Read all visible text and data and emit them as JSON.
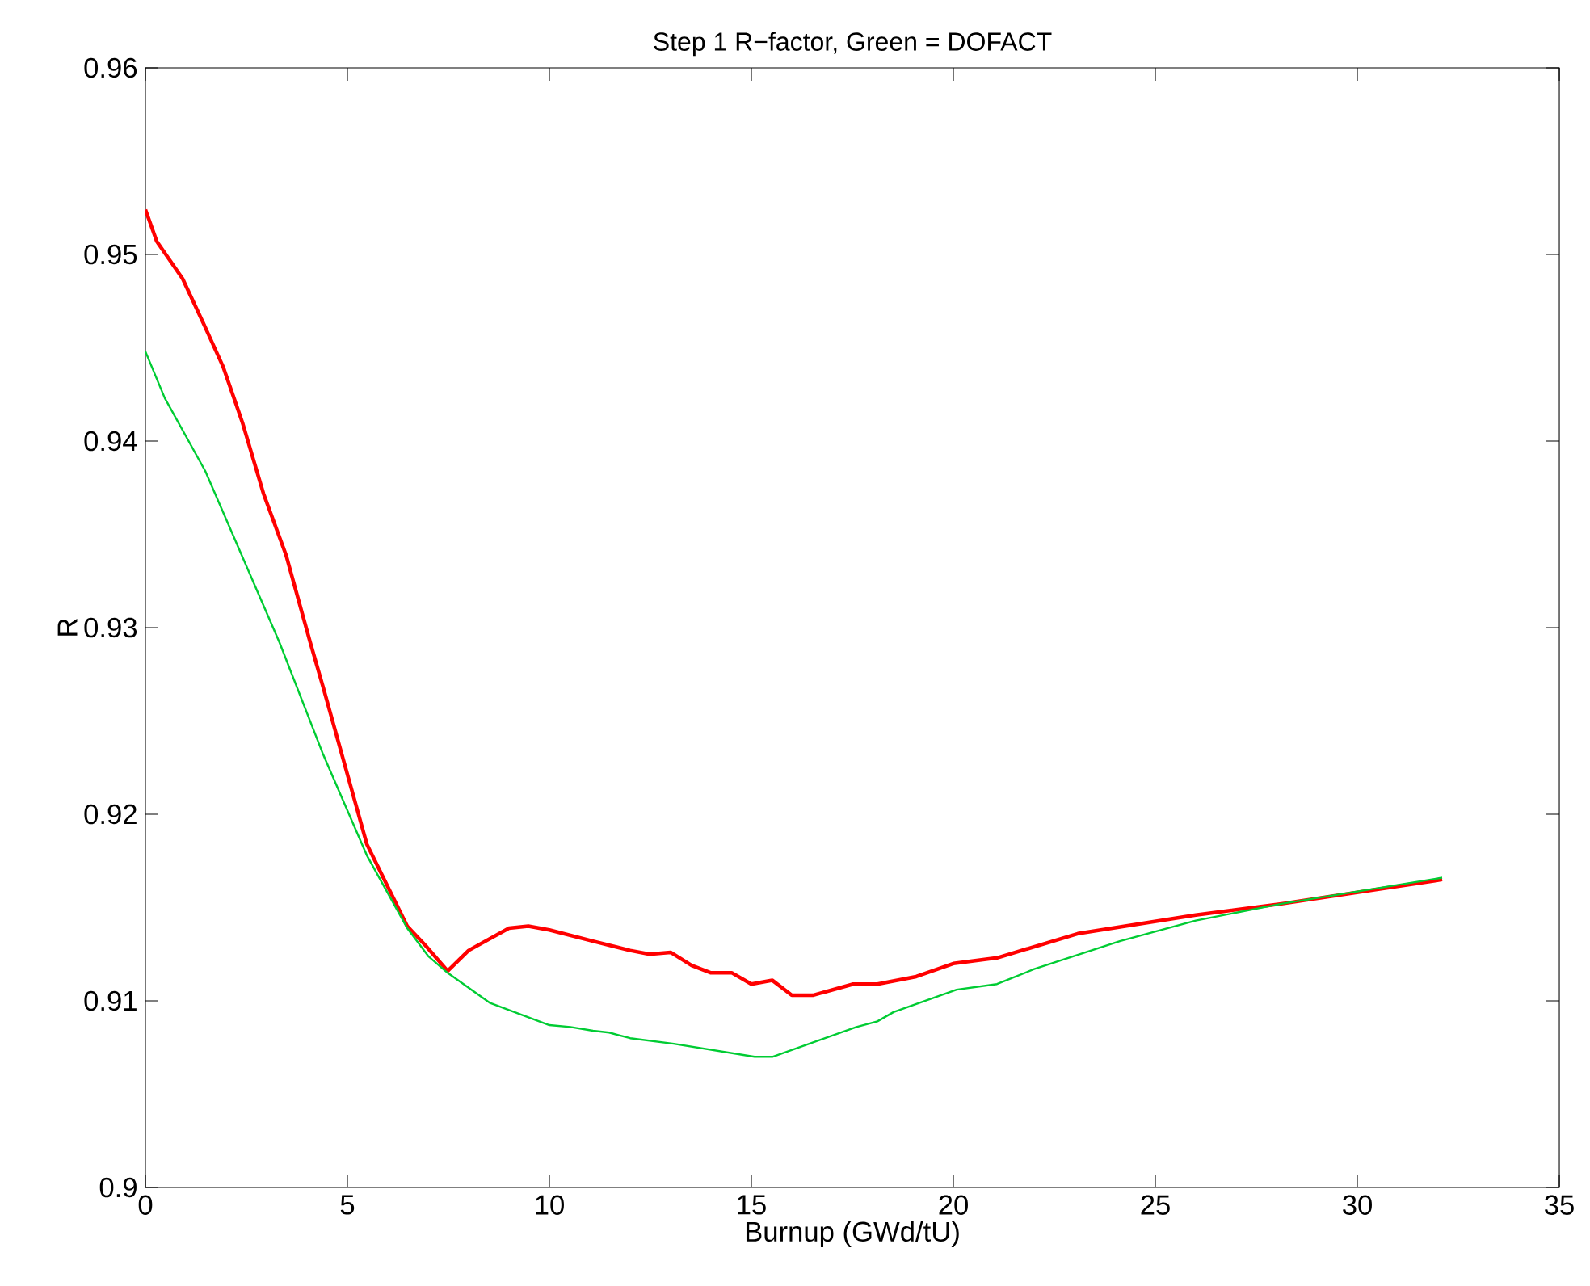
{
  "chart_data": {
    "type": "line",
    "title": "Step 1 R−factor, Green = DOFACT",
    "xlabel": "Burnup (GWd/tU)",
    "ylabel": "R",
    "xlim": [
      0,
      35
    ],
    "xticks": [
      0,
      5,
      10,
      15,
      20,
      25,
      30,
      35
    ],
    "ylim": [
      0.9,
      0.96
    ],
    "yticks": [
      0.9,
      0.91,
      0.92,
      0.93,
      0.94,
      0.95,
      0.96
    ],
    "grid": false,
    "series": [
      {
        "color": "#ff0000",
        "x": [
          0,
          0.28,
          0.92,
          1.48,
          1.92,
          2.4,
          2.92,
          3.48,
          4.08,
          4.4,
          5.48,
          6.48,
          6.92,
          7.48,
          8.0,
          9.0,
          9.48,
          10.0,
          11.08,
          12.0,
          12.48,
          13.0,
          13.52,
          14.0,
          14.52,
          15.0,
          15.52,
          16.0,
          16.52,
          17.52,
          18.12,
          19.08,
          20.0,
          21.08,
          23.08,
          26.0,
          28.12,
          32.1
        ],
        "values": [
          0.9524,
          0.9507,
          0.9487,
          0.9461,
          0.944,
          0.941,
          0.9372,
          0.9339,
          0.9292,
          0.9268,
          0.9184,
          0.914,
          0.913,
          0.9116,
          0.9127,
          0.9139,
          0.914,
          0.9138,
          0.9132,
          0.9127,
          0.9125,
          0.9126,
          0.9119,
          0.9115,
          0.9115,
          0.9109,
          0.9111,
          0.9103,
          0.9103,
          0.9109,
          0.9109,
          0.9113,
          0.912,
          0.9123,
          0.9136,
          0.9146,
          0.9152,
          0.9165
        ]
      },
      {
        "color": "#00cc33",
        "x": [
          0,
          0.48,
          1.48,
          3.32,
          4.4,
          5.48,
          6.48,
          7.0,
          7.48,
          8.52,
          10.0,
          10.52,
          11.08,
          11.48,
          12.0,
          13.08,
          15.08,
          15.52,
          17.6,
          18.12,
          18.52,
          20.08,
          21.08,
          22.0,
          24.12,
          26.0,
          28.12,
          32.1
        ],
        "values": [
          0.9448,
          0.9423,
          0.9384,
          0.9292,
          0.9232,
          0.9178,
          0.9139,
          0.9124,
          0.9115,
          0.9099,
          0.9087,
          0.9086,
          0.9084,
          0.9083,
          0.908,
          0.9077,
          0.907,
          0.907,
          0.9086,
          0.9089,
          0.9094,
          0.9106,
          0.9109,
          0.9117,
          0.9132,
          0.9143,
          0.9152,
          0.9166
        ]
      }
    ]
  }
}
